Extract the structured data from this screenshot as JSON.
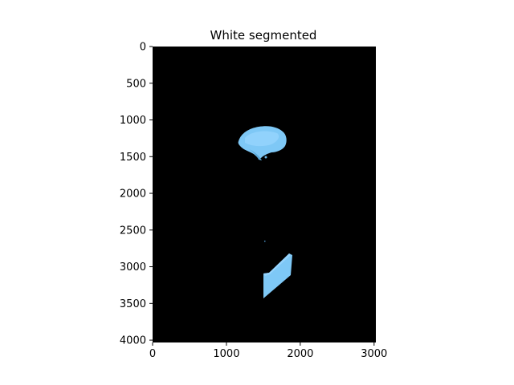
{
  "figure": {
    "title": "White segmented",
    "background": "#ffffff",
    "image_background": "#000000",
    "blob_color": "#7ec8f6",
    "blob_highlight": "#9ad6ff",
    "blob_shadow": "#5aa8d8"
  },
  "axes": {
    "x_ticks": [
      {
        "value": 0,
        "label": "0"
      },
      {
        "value": 1000,
        "label": "1000"
      },
      {
        "value": 2000,
        "label": "2000"
      },
      {
        "value": 3000,
        "label": "3000"
      }
    ],
    "y_ticks": [
      {
        "value": 0,
        "label": "0"
      },
      {
        "value": 500,
        "label": "500"
      },
      {
        "value": 1000,
        "label": "1000"
      },
      {
        "value": 1500,
        "label": "1500"
      },
      {
        "value": 2000,
        "label": "2000"
      },
      {
        "value": 2500,
        "label": "2500"
      },
      {
        "value": 3000,
        "label": "3000"
      },
      {
        "value": 3500,
        "label": "3500"
      },
      {
        "value": 4000,
        "label": "4000"
      }
    ],
    "x_range": [
      0,
      3024
    ],
    "y_range": [
      0,
      4032
    ]
  }
}
